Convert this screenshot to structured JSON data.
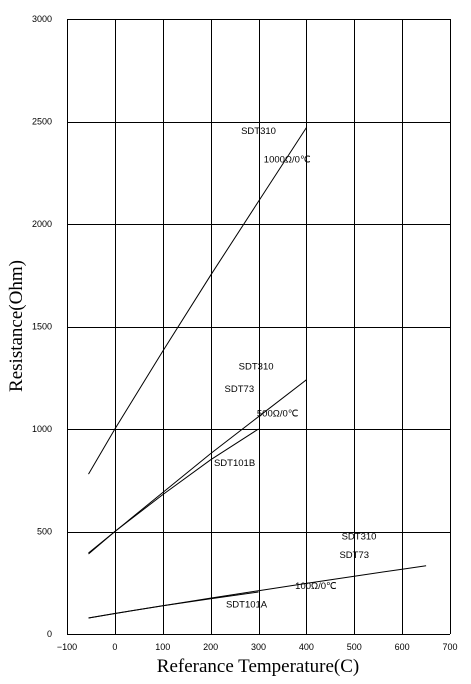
{
  "chart_data": {
    "type": "line",
    "title": "",
    "xlabel": "Referance Temperature(C)",
    "ylabel": "Resistance(Ohm)",
    "xlim": [
      -100,
      700
    ],
    "ylim": [
      0,
      3000
    ],
    "xticks": [
      -100,
      0,
      100,
      200,
      300,
      400,
      500,
      600,
      700
    ],
    "yticks": [
      0,
      500,
      1000,
      1500,
      2000,
      2500,
      3000
    ],
    "grid": true,
    "series": [
      {
        "x": [
          -55,
          0,
          100,
          200,
          300,
          400
        ],
        "y": [
          780,
          1000,
          1380,
          1750,
          2110,
          2470
        ]
      },
      {
        "x": [
          -55,
          0,
          100,
          200,
          300,
          400
        ],
        "y": [
          390,
          500,
          690,
          880,
          1060,
          1240
        ]
      },
      {
        "x": [
          -55,
          0,
          100,
          200,
          300
        ],
        "y": [
          395,
          500,
          680,
          850,
          1000
        ]
      },
      {
        "x": [
          -55,
          0,
          100,
          200,
          300,
          400,
          500,
          600,
          650
        ],
        "y": [
          78,
          100,
          138,
          175,
          211,
          247,
          282,
          316,
          333
        ]
      },
      {
        "x": [
          -55,
          0,
          100,
          200,
          300
        ],
        "y": [
          78,
          100,
          138,
          172,
          205
        ]
      }
    ],
    "annotations": [
      {
        "text": "SDT310",
        "x": 300,
        "y": 2440
      },
      {
        "text": "1000Ω/0℃",
        "x": 360,
        "y": 2300
      },
      {
        "text": "SDT310",
        "x": 295,
        "y": 1290
      },
      {
        "text": "SDT73",
        "x": 260,
        "y": 1180
      },
      {
        "text": "500Ω/0℃",
        "x": 340,
        "y": 1060
      },
      {
        "text": "SDT101B",
        "x": 250,
        "y": 820
      },
      {
        "text": "SDT310",
        "x": 510,
        "y": 460
      },
      {
        "text": "SDT73",
        "x": 500,
        "y": 370
      },
      {
        "text": "100Ω/0℃",
        "x": 420,
        "y": 220
      },
      {
        "text": "SDT101A",
        "x": 275,
        "y": 130
      }
    ]
  }
}
